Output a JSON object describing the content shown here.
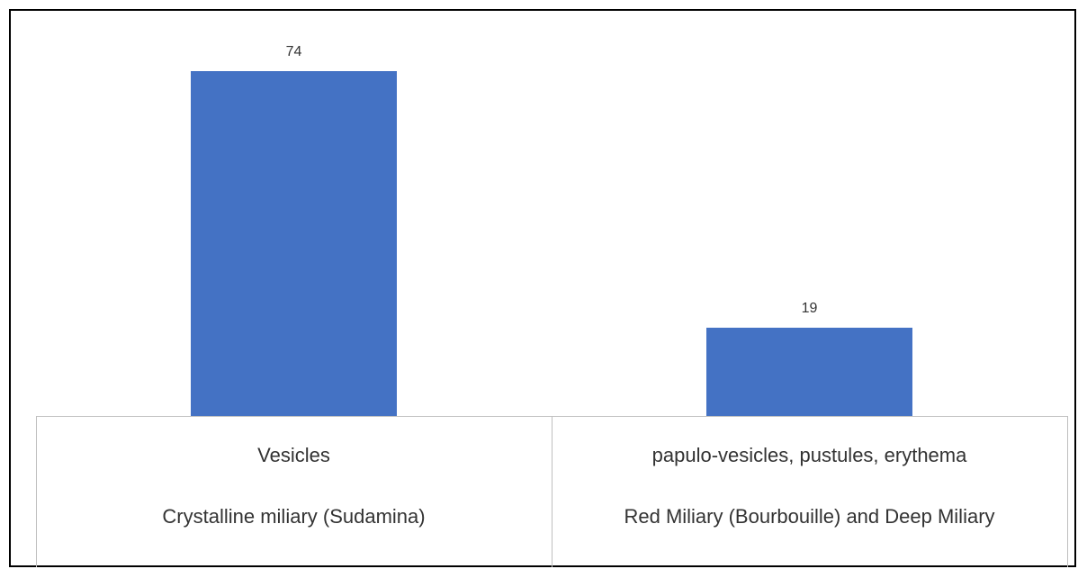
{
  "chart_data": {
    "type": "bar",
    "categories": [
      [
        "Vesicles",
        "Crystalline miliary (Sudamina)"
      ],
      [
        "papulo-vesicles, pustules, erythema",
        "Red Miliary (Bourbouille) and Deep Miliary"
      ]
    ],
    "values": [
      74,
      19
    ],
    "color": "#4472c4"
  }
}
